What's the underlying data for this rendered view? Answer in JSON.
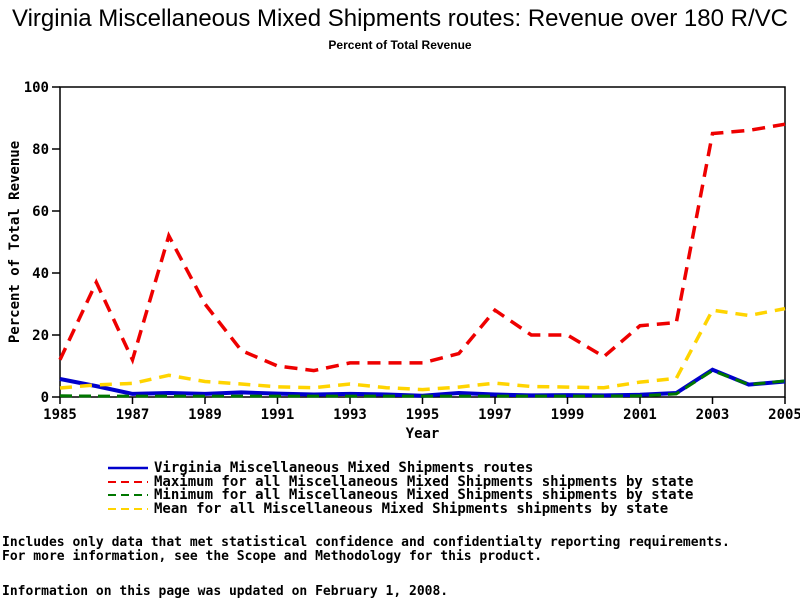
{
  "title": "Virginia Miscellaneous Mixed Shipments routes: Revenue over 180 R/VC",
  "subtitle": "Percent of Total Revenue",
  "footer": {
    "line1": "Includes only data that met statistical confidence and confidentialty reporting requirements.",
    "line2": "For more information, see the Scope and Methodology for this product.",
    "updated": "Information on this page was updated on February 1, 2008."
  },
  "chart_data": {
    "type": "line",
    "title": "Virginia Miscellaneous Mixed Shipments routes: Revenue over 180 R/VC",
    "subtitle": "Percent of Total Revenue",
    "xlabel": "Year",
    "ylabel": "Percent of Total Revenue",
    "xlim": [
      1985,
      2005
    ],
    "ylim": [
      0,
      100
    ],
    "xticks": [
      1985,
      1987,
      1989,
      1991,
      1993,
      1995,
      1997,
      1999,
      2001,
      2003,
      2005
    ],
    "yticks": [
      0,
      20,
      40,
      60,
      80,
      100
    ],
    "grid": false,
    "legend_position": "bottom",
    "frame": true,
    "axis_color": "#000000",
    "x": [
      1985,
      1986,
      1987,
      1988,
      1989,
      1990,
      1991,
      1992,
      1993,
      1994,
      1995,
      1996,
      1997,
      1998,
      1999,
      2000,
      2001,
      2002,
      2003,
      2004,
      2005
    ],
    "series": [
      {
        "name": "Virginia Miscellaneous Mixed Shipments routes",
        "color": "#0000cc",
        "line_style": "solid",
        "values": [
          5.8,
          3.5,
          1.0,
          1.3,
          1.0,
          1.5,
          1.1,
          0.8,
          1.0,
          0.8,
          0.4,
          1.3,
          0.8,
          0.5,
          0.6,
          0.5,
          0.7,
          1.3,
          8.8,
          4.0,
          5.0
        ]
      },
      {
        "name": "Maximum for all Miscellaneous Mixed Shipments shipments by state",
        "color": "#ee0000",
        "line_style": "dashed",
        "values": [
          12,
          37,
          12,
          52,
          30,
          15,
          10,
          8.5,
          11,
          11,
          11,
          14,
          28,
          20,
          20,
          13,
          23,
          24,
          85,
          86,
          88
        ]
      },
      {
        "name": "Minimum for all Miscellaneous Mixed Shipments shipments by state",
        "color": "#007700",
        "line_style": "dashed",
        "values": [
          0.4,
          0.3,
          0.3,
          0.3,
          0.3,
          0.3,
          0.3,
          0.3,
          0.3,
          0.3,
          0.3,
          0.3,
          0.3,
          0.3,
          0.3,
          0.3,
          0.4,
          1.0,
          8.5,
          4.0,
          5.2
        ]
      },
      {
        "name": "Mean for all Miscellaneous Mixed Shipments shipments by state",
        "color": "#ffd400",
        "line_style": "dashed",
        "values": [
          2.9,
          3.9,
          4.4,
          7.0,
          5.0,
          4.2,
          3.3,
          3.0,
          4.2,
          3.0,
          2.4,
          3.2,
          4.5,
          3.4,
          3.2,
          3.0,
          4.8,
          6.0,
          28,
          26.3,
          28.5
        ]
      }
    ]
  }
}
